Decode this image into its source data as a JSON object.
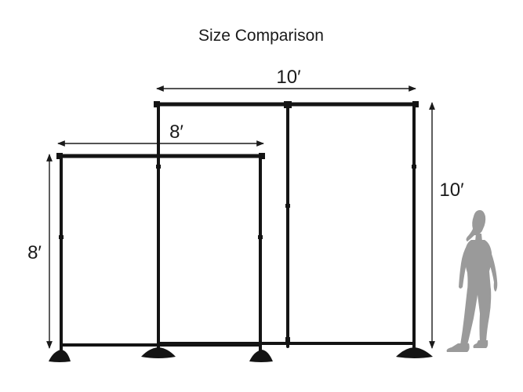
{
  "title": "Size Comparison",
  "frames": {
    "large": {
      "width_label": "10′",
      "height_label": "10′"
    },
    "small": {
      "width_label": "8′",
      "height_label": "8′"
    }
  },
  "colors": {
    "frame": "#141414",
    "dimension_line": "#1a1a1a",
    "silhouette": "#9a9a9a",
    "background": "#ffffff"
  },
  "icons": {
    "person": "person-silhouette-icon"
  }
}
